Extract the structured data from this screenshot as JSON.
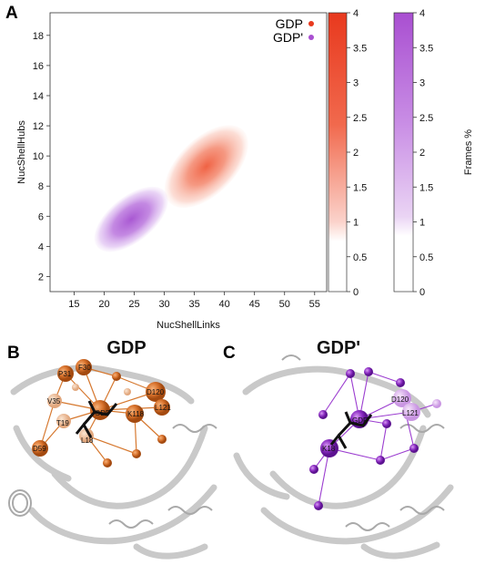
{
  "panels": {
    "a": "A",
    "b": "B",
    "c": "C"
  },
  "chart_data": {
    "type": "heatmap",
    "xlabel": "NucShellLinks",
    "ylabel": "NucShellHubs",
    "xlim": [
      11,
      57
    ],
    "ylim": [
      1,
      19.5
    ],
    "x_ticks": [
      15,
      20,
      25,
      30,
      35,
      40,
      45,
      50,
      55
    ],
    "y_ticks": [
      2,
      4,
      6,
      8,
      10,
      12,
      14,
      16,
      18
    ],
    "legend_position": "top-right",
    "series": [
      {
        "name": "GDP",
        "color": "#e8391e",
        "density": {
          "center": [
            37,
            9.3
          ],
          "spread": [
            6,
            3.4
          ],
          "corr": 0.75,
          "peak": 1.6
        }
      },
      {
        "name": "GDP'",
        "color": "#a94fd1",
        "density": {
          "center": [
            24.5,
            5.8
          ],
          "spread": [
            5.6,
            2.7
          ],
          "corr": 0.72,
          "peak": 2.4
        }
      }
    ],
    "colorbars": [
      {
        "series": "GDP",
        "color": "#e8391e",
        "ticks": [
          "0",
          "0.5",
          "1",
          "1.5",
          "2",
          "2.5",
          "3",
          "3.5",
          "4"
        ],
        "range": [
          0,
          4
        ]
      },
      {
        "series": "GDP'",
        "color": "#a94fd1",
        "ticks": [
          "0",
          "0.5",
          "1",
          "1.5",
          "2",
          "2.5",
          "3",
          "3.5",
          "4"
        ],
        "range": [
          0,
          4
        ],
        "label": "Frames %"
      }
    ]
  },
  "structure_b": {
    "title": "GDP",
    "ligand": "GDP",
    "residues": [
      "F30",
      "P31",
      "V35",
      "T19",
      "L18",
      "D59",
      "D120",
      "L121",
      "K118"
    ]
  },
  "structure_c": {
    "title": "GDP'",
    "ligand": "GDP",
    "residues": [
      "D120",
      "L121",
      "K18"
    ]
  }
}
